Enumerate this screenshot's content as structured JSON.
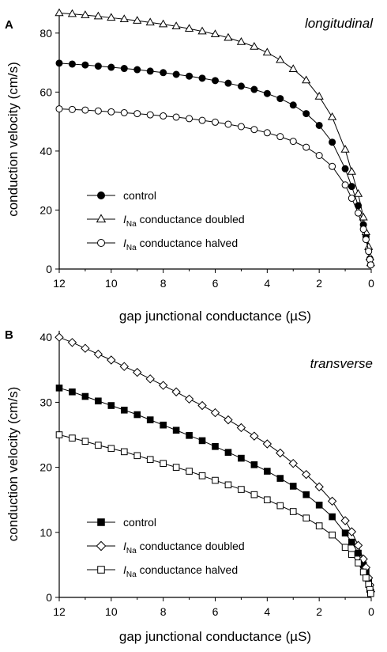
{
  "chart_data": [
    {
      "type": "line",
      "panel_label": "A",
      "annotation": "longitudinal",
      "xlabel": "gap junctional conductance (µS)",
      "ylabel": "conduction velocity (cm/s)",
      "xlim": [
        12,
        0
      ],
      "ylim": [
        0,
        88
      ],
      "xticks": [
        12,
        10,
        8,
        6,
        4,
        2,
        0
      ],
      "yticks": [
        0,
        20,
        40,
        60,
        80
      ],
      "legend_position": "lower-left",
      "x": [
        12,
        11.5,
        11,
        10.5,
        10,
        9.5,
        9,
        8.5,
        8,
        7.5,
        7,
        6.5,
        6,
        5.5,
        5,
        4.5,
        4,
        3.5,
        3,
        2.5,
        2,
        1.5,
        1,
        0.75,
        0.5,
        0.3,
        0.2,
        0.1,
        0.05,
        0.02
      ],
      "series": [
        {
          "name_prefix": "",
          "name_sub": "",
          "name": "control",
          "marker": "circle",
          "fill": "filled",
          "values": [
            69.8,
            69.5,
            69.2,
            68.8,
            68.4,
            68.0,
            67.6,
            67.1,
            66.6,
            66.0,
            65.4,
            64.7,
            63.9,
            63.0,
            62.0,
            60.9,
            59.5,
            57.8,
            55.6,
            52.7,
            48.7,
            43.0,
            34.0,
            28.0,
            21.5,
            15.0,
            11.0,
            6.5,
            3.5,
            1.5
          ]
        },
        {
          "name_prefix": "I",
          "name_sub": "Na",
          "name": " conductance doubled",
          "marker": "triangle",
          "fill": "open",
          "values": [
            86.8,
            86.5,
            86.1,
            85.7,
            85.2,
            84.7,
            84.2,
            83.6,
            83.0,
            82.3,
            81.5,
            80.6,
            79.6,
            78.4,
            77.0,
            75.4,
            73.4,
            70.9,
            67.8,
            64.0,
            58.5,
            51.5,
            40.5,
            33.0,
            25.5,
            17.5,
            12.5,
            7.5,
            4.0,
            2.0
          ]
        },
        {
          "name_prefix": "I",
          "name_sub": "Na",
          "name": " conductance halved",
          "marker": "circle",
          "fill": "open",
          "values": [
            54.3,
            54.1,
            53.9,
            53.6,
            53.3,
            53.0,
            52.7,
            52.3,
            51.9,
            51.5,
            51.0,
            50.4,
            49.8,
            49.1,
            48.3,
            47.3,
            46.2,
            44.9,
            43.3,
            41.3,
            38.5,
            34.8,
            28.5,
            24.0,
            19.0,
            13.5,
            10.0,
            6.0,
            3.2,
            1.4
          ]
        }
      ]
    },
    {
      "type": "line",
      "panel_label": "B",
      "annotation": "transverse",
      "xlabel": "gap junctional conductance (µS)",
      "ylabel": "conduction velocity (cm/s)",
      "xlim": [
        12,
        0
      ],
      "ylim": [
        0,
        41
      ],
      "xticks": [
        12,
        10,
        8,
        6,
        4,
        2,
        0
      ],
      "yticks": [
        0,
        10,
        20,
        30,
        40
      ],
      "legend_position": "lower-left",
      "x": [
        12,
        11.5,
        11,
        10.5,
        10,
        9.5,
        9,
        8.5,
        8,
        7.5,
        7,
        6.5,
        6,
        5.5,
        5,
        4.5,
        4,
        3.5,
        3,
        2.5,
        2,
        1.5,
        1,
        0.75,
        0.5,
        0.3,
        0.2,
        0.1,
        0.05,
        0.02
      ],
      "series": [
        {
          "name_prefix": "",
          "name_sub": "",
          "name": "control",
          "marker": "square",
          "fill": "filled",
          "values": [
            32.2,
            31.6,
            30.9,
            30.2,
            29.5,
            28.8,
            28.1,
            27.3,
            26.5,
            25.7,
            24.9,
            24.1,
            23.2,
            22.3,
            21.4,
            20.4,
            19.4,
            18.3,
            17.1,
            15.8,
            14.2,
            12.4,
            9.9,
            8.5,
            6.8,
            5.0,
            3.9,
            2.6,
            1.6,
            0.8
          ]
        },
        {
          "name_prefix": "I",
          "name_sub": "Na",
          "name": " conductance doubled",
          "marker": "diamond",
          "fill": "open",
          "values": [
            40.0,
            39.2,
            38.3,
            37.4,
            36.5,
            35.5,
            34.6,
            33.6,
            32.6,
            31.6,
            30.5,
            29.5,
            28.4,
            27.3,
            26.1,
            24.8,
            23.6,
            22.2,
            20.6,
            18.9,
            17.0,
            14.8,
            11.8,
            10.1,
            8.0,
            5.9,
            4.6,
            3.0,
            1.9,
            0.9
          ]
        },
        {
          "name_prefix": "I",
          "name_sub": "Na",
          "name": " conductance halved",
          "marker": "square",
          "fill": "open",
          "values": [
            25.0,
            24.5,
            24.0,
            23.4,
            22.9,
            22.4,
            21.8,
            21.2,
            20.6,
            20.0,
            19.4,
            18.7,
            18.0,
            17.3,
            16.6,
            15.8,
            15.0,
            14.1,
            13.2,
            12.2,
            11.0,
            9.6,
            7.7,
            6.6,
            5.3,
            3.9,
            3.0,
            2.0,
            1.2,
            0.6
          ]
        }
      ]
    }
  ]
}
